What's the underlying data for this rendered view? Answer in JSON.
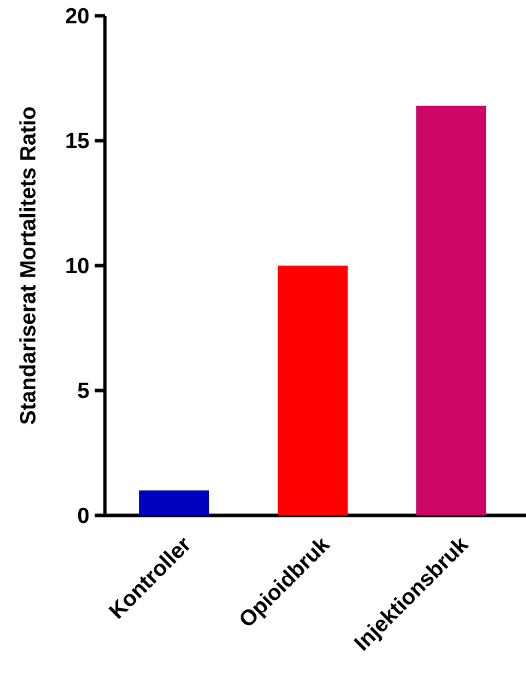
{
  "chart_data": {
    "type": "bar",
    "ylabel": "Standariserat Mortalitets Ratio",
    "categories": [
      "Kontroller",
      "Opioidbruk",
      "Injektionsbruk"
    ],
    "values": [
      1,
      10,
      16.4
    ],
    "colors": [
      "#0000c0",
      "#ff0000",
      "#cc0766"
    ],
    "ylim": [
      0,
      20
    ],
    "yticks": [
      0,
      5,
      10,
      15,
      20
    ],
    "grid": false
  }
}
